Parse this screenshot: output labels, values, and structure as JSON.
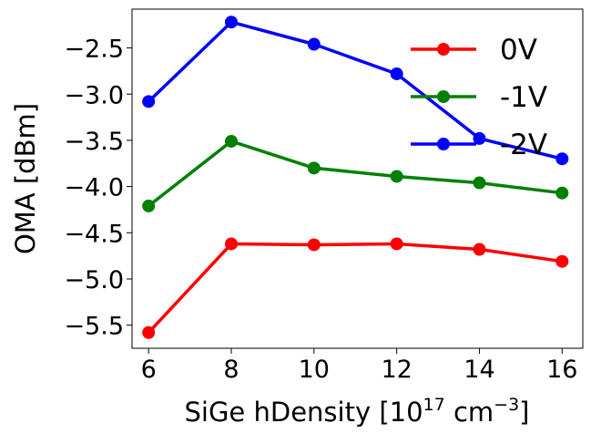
{
  "chart_data": {
    "type": "line",
    "xlabel": {
      "main": "SiGe hDensity [10",
      "exp1": "17",
      "unit": " cm",
      "exp2": "−3",
      "close": "]"
    },
    "ylabel": "OMA [dBm]",
    "xlim": [
      5.6,
      16.5
    ],
    "ylim": [
      -5.75,
      -2.08
    ],
    "xticks": [
      6,
      8,
      10,
      12,
      14,
      16
    ],
    "xtick_labels": [
      "6",
      "8",
      "10",
      "12",
      "14",
      "16"
    ],
    "yticks": [
      -5.5,
      -5.0,
      -4.5,
      -4.0,
      -3.5,
      -3.0,
      -2.5
    ],
    "ytick_labels": [
      "−5.5",
      "−5.0",
      "−4.5",
      "−4.0",
      "−3.5",
      "−3.0",
      "−2.5"
    ],
    "x": [
      6,
      8,
      10,
      12,
      14,
      16
    ],
    "series": [
      {
        "name": "0V",
        "color": "#ff0000",
        "values": [
          -5.58,
          -4.62,
          -4.63,
          -4.62,
          -4.68,
          -4.81
        ]
      },
      {
        "name": "-1V",
        "color": "#008000",
        "values": [
          -4.21,
          -3.51,
          -3.8,
          -3.89,
          -3.96,
          -4.07
        ]
      },
      {
        "name": "-2V",
        "color": "#0000ff",
        "values": [
          -3.08,
          -2.22,
          -2.46,
          -2.78,
          -3.48,
          -3.7
        ]
      }
    ],
    "legend_position": "upper right",
    "grid": false
  }
}
